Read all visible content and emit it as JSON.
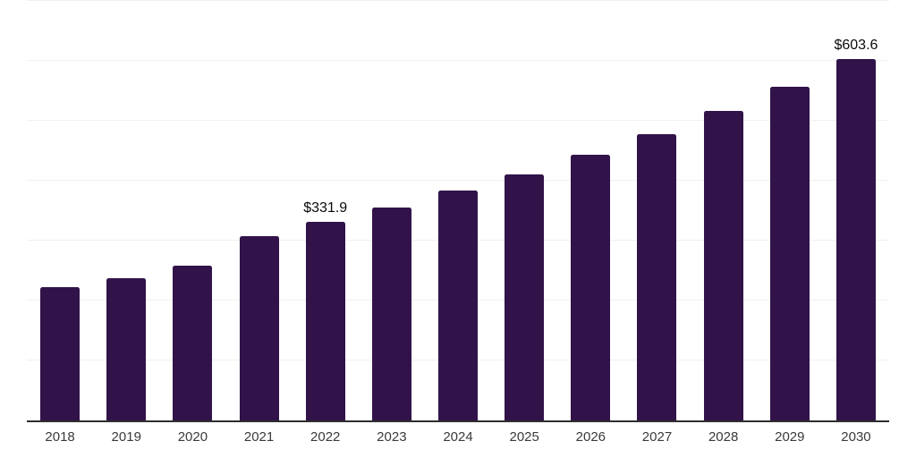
{
  "chart_data": {
    "type": "bar",
    "title": "",
    "xlabel": "",
    "ylabel": "",
    "categories": [
      "2018",
      "2019",
      "2020",
      "2021",
      "2022",
      "2023",
      "2024",
      "2025",
      "2026",
      "2027",
      "2028",
      "2029",
      "2030"
    ],
    "values": [
      222,
      238,
      258,
      308,
      331.9,
      355,
      383,
      411,
      443,
      477,
      516,
      557,
      603.6
    ],
    "data_labels": [
      "",
      "",
      "",
      "",
      "$331.9",
      "",
      "",
      "",
      "",
      "",
      "",
      "",
      "$603.6"
    ],
    "ylim": [
      0,
      700
    ],
    "gridline_step": 100,
    "grid": "horizontal",
    "legend": "none"
  },
  "colors": {
    "bar": "#321349",
    "gridline": "#f0f0f0",
    "axis": "#2e2e2e",
    "tick_label": "#3a3a3a",
    "data_label": "#0a0a0a",
    "background": "#ffffff"
  }
}
